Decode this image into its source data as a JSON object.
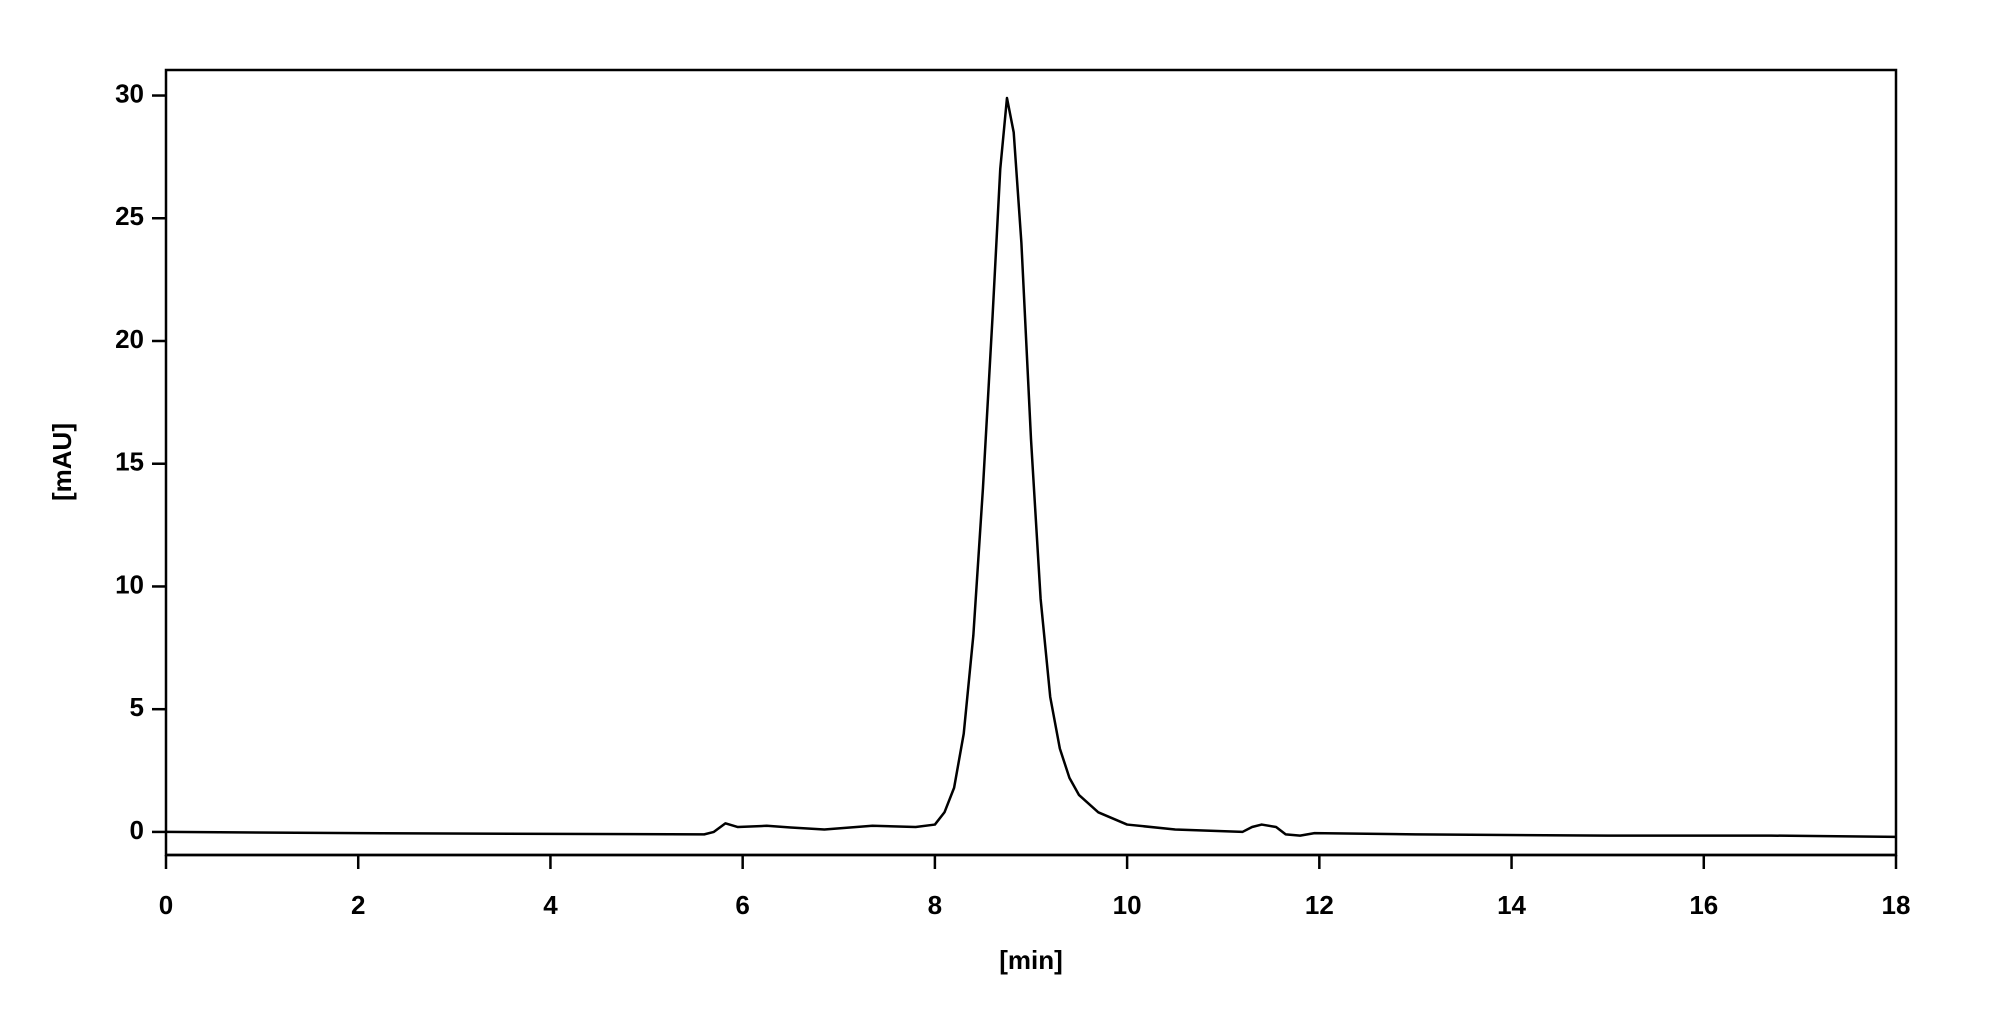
{
  "chart_data": {
    "type": "line",
    "xlabel": "[min]",
    "ylabel": "[mAU]",
    "xlim": [
      0,
      18
    ],
    "xticks": [
      0,
      2,
      4,
      6,
      8,
      10,
      12,
      14,
      16,
      18
    ],
    "ylim": [
      -0.94,
      31.04
    ],
    "yticks": [
      0,
      5,
      10,
      15,
      20,
      25,
      30
    ],
    "series": [
      {
        "color": "#000000",
        "x": [
          0,
          2,
          4,
          5.6,
          5.7,
          5.82,
          5.95,
          6.25,
          6.5,
          6.85,
          7.35,
          7.8,
          8.0,
          8.1,
          8.2,
          8.3,
          8.4,
          8.5,
          8.6,
          8.68,
          8.75,
          8.82,
          8.9,
          9.0,
          9.1,
          9.2,
          9.3,
          9.4,
          9.5,
          9.7,
          10.0,
          10.5,
          11.2,
          11.3,
          11.4,
          11.55,
          11.65,
          11.8,
          11.95,
          13,
          15,
          16.7,
          18
        ],
        "values": [
          0,
          -0.05,
          -0.08,
          -0.1,
          0.0,
          0.35,
          0.2,
          0.25,
          0.18,
          0.1,
          0.25,
          0.2,
          0.3,
          0.8,
          1.8,
          4,
          8,
          14,
          21,
          27,
          29.9,
          28.5,
          24,
          16,
          9.5,
          5.5,
          3.4,
          2.2,
          1.5,
          0.8,
          0.3,
          0.1,
          0.0,
          0.2,
          0.3,
          0.2,
          -0.1,
          -0.15,
          -0.05,
          -0.1,
          -0.15,
          -0.15,
          -0.2
        ]
      }
    ]
  }
}
